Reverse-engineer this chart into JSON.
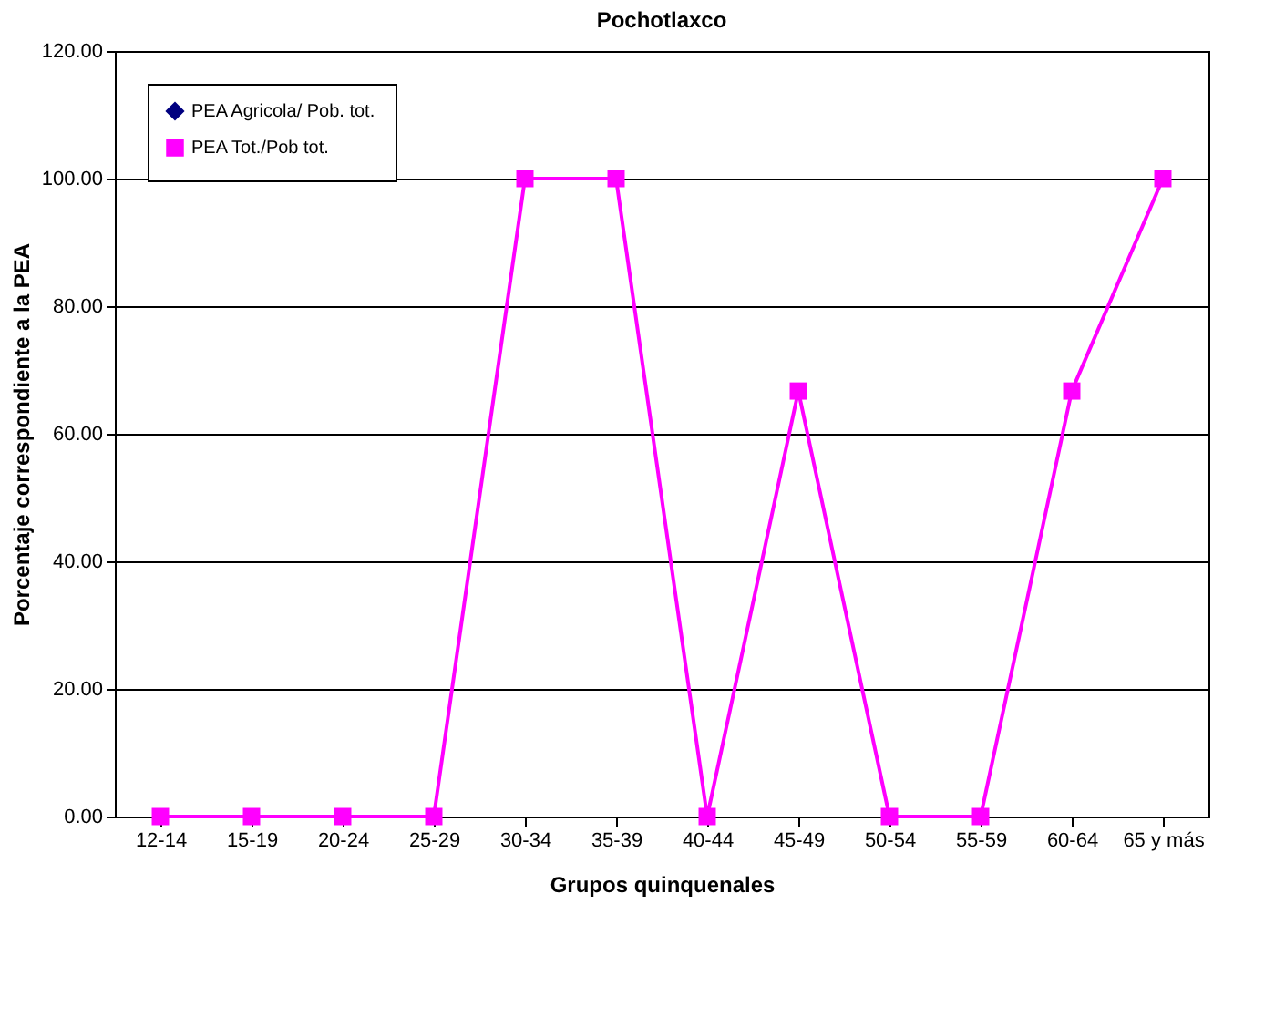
{
  "chart_data": {
    "type": "line",
    "title": "Pochotlaxco",
    "xlabel": "Grupos quinquenales",
    "ylabel": "Porcentaje correspondiente a la PEA",
    "categories": [
      "12-14",
      "15-19",
      "20-24",
      "25-29",
      "30-34",
      "35-39",
      "40-44",
      "45-49",
      "50-54",
      "55-59",
      "60-64",
      "65 y más"
    ],
    "series": [
      {
        "name": "PEA Agricola/ Pob. tot.",
        "color": "#000080",
        "marker": "diamond",
        "values": [
          null,
          null,
          null,
          null,
          null,
          null,
          null,
          null,
          null,
          null,
          null,
          null
        ]
      },
      {
        "name": "PEA Tot./Pob tot.",
        "color": "#ff00ff",
        "marker": "square",
        "values": [
          0,
          0,
          0,
          0,
          100,
          100,
          0,
          66.7,
          0,
          0,
          66.7,
          100
        ]
      }
    ],
    "ylim": [
      0,
      120
    ],
    "yticks": [
      {
        "value": 0,
        "label": "0.00"
      },
      {
        "value": 20,
        "label": "20.00"
      },
      {
        "value": 40,
        "label": "40.00"
      },
      {
        "value": 60,
        "label": "60.00"
      },
      {
        "value": 80,
        "label": "80.00"
      },
      {
        "value": 100,
        "label": "100.00"
      },
      {
        "value": 120,
        "label": "120.00"
      }
    ],
    "grid": "y",
    "legend": "top left",
    "line_style": "solid"
  }
}
